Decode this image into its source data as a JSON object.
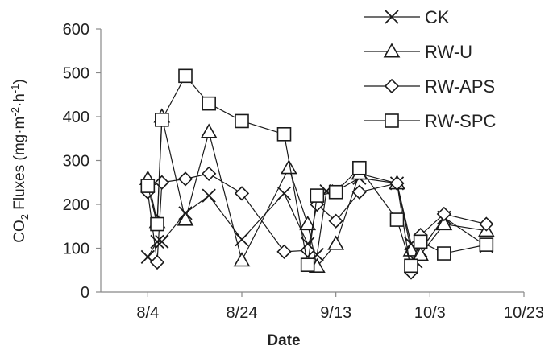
{
  "chart_data": {
    "type": "line",
    "xlabel": "Date",
    "ylabel": {
      "prefix": "CO",
      "subscript": "2",
      "main": " Fluxes (mg·m",
      "exp1": "-2",
      "mid": "·h",
      "exp2": "-1",
      "suffix": ")"
    },
    "xlim": [
      "2013-07-25",
      "2013-10-23"
    ],
    "ylim": [
      0,
      600
    ],
    "x_ticks": [
      {
        "label": "8/4",
        "date": "2013-08-04"
      },
      {
        "label": "8/24",
        "date": "2013-08-24"
      },
      {
        "label": "9/13",
        "date": "2013-09-13"
      },
      {
        "label": "10/3",
        "date": "2013-10-03"
      },
      {
        "label": "10/23",
        "date": "2013-10-23"
      }
    ],
    "y_ticks": [
      0,
      100,
      200,
      300,
      400,
      500,
      600
    ],
    "legend_position": "top-right",
    "series": [
      {
        "name": "CK",
        "marker": "x",
        "points": [
          [
            "2013-08-04",
            80
          ],
          [
            "2013-08-06",
            115
          ],
          [
            "2013-08-07",
            115
          ],
          [
            "2013-08-12",
            180
          ],
          [
            "2013-08-17",
            220
          ],
          [
            "2013-08-24",
            120
          ],
          [
            "2013-09-02",
            225
          ],
          [
            "2013-09-07",
            110
          ],
          [
            "2013-09-09",
            85
          ],
          [
            "2013-09-11",
            230
          ],
          [
            "2013-09-13",
            230
          ],
          [
            "2013-09-18",
            260
          ],
          [
            "2013-09-26",
            248
          ],
          [
            "2013-09-29",
            110
          ],
          [
            "2013-09-30",
            70
          ],
          [
            "2013-10-01",
            95
          ],
          [
            "2013-10-06",
            170
          ],
          [
            "2013-10-15",
            105
          ]
        ]
      },
      {
        "name": "RW-U",
        "marker": "triangle",
        "points": [
          [
            "2013-08-04",
            258
          ],
          [
            "2013-08-06",
            160
          ],
          [
            "2013-08-07",
            400
          ],
          [
            "2013-08-12",
            165
          ],
          [
            "2013-08-17",
            365
          ],
          [
            "2013-08-24",
            72
          ],
          [
            "2013-09-03",
            283
          ],
          [
            "2013-09-07",
            155
          ],
          [
            "2013-09-09",
            58
          ],
          [
            "2013-09-13",
            110
          ],
          [
            "2013-09-18",
            270
          ],
          [
            "2013-09-26",
            248
          ],
          [
            "2013-09-29",
            95
          ],
          [
            "2013-10-01",
            85
          ],
          [
            "2013-10-06",
            155
          ],
          [
            "2013-10-15",
            140
          ]
        ]
      },
      {
        "name": "RW-APS",
        "marker": "diamond",
        "points": [
          [
            "2013-08-04",
            228
          ],
          [
            "2013-08-06",
            68
          ],
          [
            "2013-08-07",
            250
          ],
          [
            "2013-08-12",
            258
          ],
          [
            "2013-08-17",
            270
          ],
          [
            "2013-08-24",
            225
          ],
          [
            "2013-09-02",
            92
          ],
          [
            "2013-09-07",
            95
          ],
          [
            "2013-09-09",
            200
          ],
          [
            "2013-09-13",
            162
          ],
          [
            "2013-09-18",
            228
          ],
          [
            "2013-09-26",
            248
          ],
          [
            "2013-09-29",
            45
          ],
          [
            "2013-10-01",
            130
          ],
          [
            "2013-10-06",
            178
          ],
          [
            "2013-10-15",
            155
          ]
        ]
      },
      {
        "name": "RW-SPC",
        "marker": "square",
        "points": [
          [
            "2013-08-04",
            242
          ],
          [
            "2013-08-06",
            155
          ],
          [
            "2013-08-07",
            393
          ],
          [
            "2013-08-12",
            493
          ],
          [
            "2013-08-17",
            430
          ],
          [
            "2013-08-24",
            390
          ],
          [
            "2013-09-02",
            360
          ],
          [
            "2013-09-07",
            62
          ],
          [
            "2013-09-09",
            220
          ],
          [
            "2013-09-13",
            228
          ],
          [
            "2013-09-18",
            283
          ],
          [
            "2013-09-26",
            165
          ],
          [
            "2013-09-29",
            60
          ],
          [
            "2013-10-01",
            115
          ],
          [
            "2013-10-06",
            88
          ],
          [
            "2013-10-15",
            108
          ]
        ]
      }
    ]
  },
  "colors": {
    "line": "#1a1a1a",
    "axis": "#888888",
    "text": "#222222"
  }
}
